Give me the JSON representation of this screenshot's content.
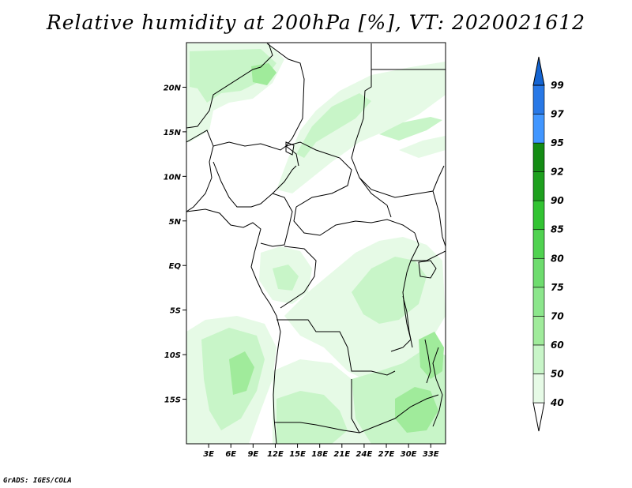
{
  "title": "Relative humidity at 200hPa [%], VT: 2020021612",
  "credit": "GrADS: IGES/COLA",
  "map": {
    "lon_range": [
      0,
      35
    ],
    "lat_range": [
      -20,
      25
    ],
    "xticks": [
      {
        "lon": 3,
        "label": "3E"
      },
      {
        "lon": 6,
        "label": "6E"
      },
      {
        "lon": 9,
        "label": "9E"
      },
      {
        "lon": 12,
        "label": "12E"
      },
      {
        "lon": 15,
        "label": "15E"
      },
      {
        "lon": 18,
        "label": "18E"
      },
      {
        "lon": 21,
        "label": "21E"
      },
      {
        "lon": 24,
        "label": "24E"
      },
      {
        "lon": 27,
        "label": "27E"
      },
      {
        "lon": 30,
        "label": "30E"
      },
      {
        "lon": 33,
        "label": "33E"
      }
    ],
    "yticks": [
      {
        "lat": 20,
        "label": "20N"
      },
      {
        "lat": 15,
        "label": "15N"
      },
      {
        "lat": 10,
        "label": "10N"
      },
      {
        "lat": 5,
        "label": "5N"
      },
      {
        "lat": 0,
        "label": "EQ"
      },
      {
        "lat": -5,
        "label": "5S"
      },
      {
        "lat": -10,
        "label": "10S"
      },
      {
        "lat": -15,
        "label": "15S"
      }
    ]
  },
  "colorbar": {
    "levels": [
      "40",
      "50",
      "60",
      "70",
      "75",
      "80",
      "85",
      "90",
      "92",
      "95",
      "97",
      "99"
    ],
    "colors": [
      "#ffffff",
      "#e6fae6",
      "#c8f5c8",
      "#a0eb9b",
      "#8ce68c",
      "#6edc6e",
      "#50d250",
      "#32c332",
      "#1ea01e",
      "#148c14",
      "#4196ff",
      "#2878e6",
      "#1464d2"
    ],
    "orientation": "vertical",
    "placement": "right"
  },
  "colors": {
    "frame": "#000000",
    "land_lines": "#000000",
    "fill_light": "#e6fae6",
    "fill_mid": "#c8f5c8",
    "fill_strong": "#a0eb9b"
  }
}
